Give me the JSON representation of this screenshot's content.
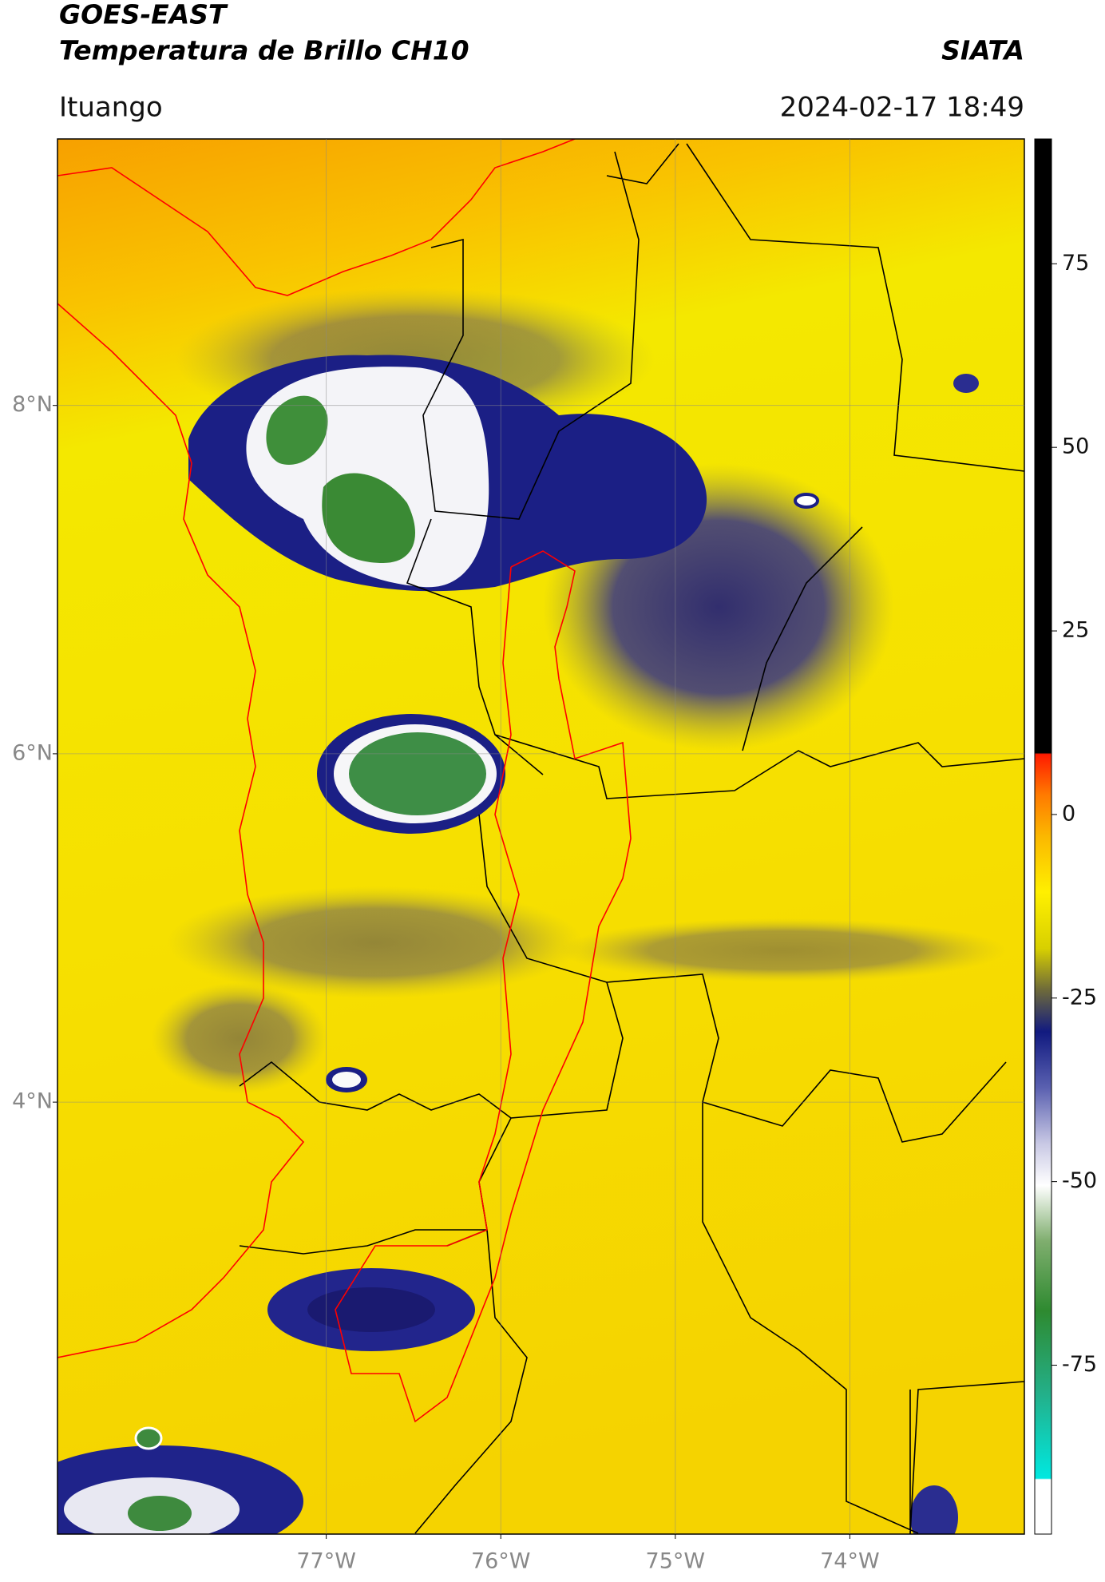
{
  "chart_data": {
    "type": "map",
    "title": "GOES-EAST",
    "subtitle": "Temperatura de Brillo CH10",
    "source": "SIATA",
    "location": "Ituango",
    "timestamp": "2024-02-17 18:49",
    "xlim": [
      -78.54,
      -73.0
    ],
    "ylim": [
      1.52,
      9.53
    ],
    "xticks": [
      {
        "value": -77,
        "label": "77°W"
      },
      {
        "value": -76,
        "label": "76°W"
      },
      {
        "value": -75,
        "label": "75°W"
      },
      {
        "value": -74,
        "label": "74°W"
      }
    ],
    "yticks": [
      {
        "value": 8,
        "label": "8°N"
      },
      {
        "value": 6,
        "label": "6°N"
      },
      {
        "value": 4,
        "label": "4°N"
      }
    ],
    "grid": true,
    "clim": [
      -98,
      92
    ],
    "cticks": [
      75,
      50,
      25,
      0,
      -25,
      -50,
      -75
    ]
  }
}
